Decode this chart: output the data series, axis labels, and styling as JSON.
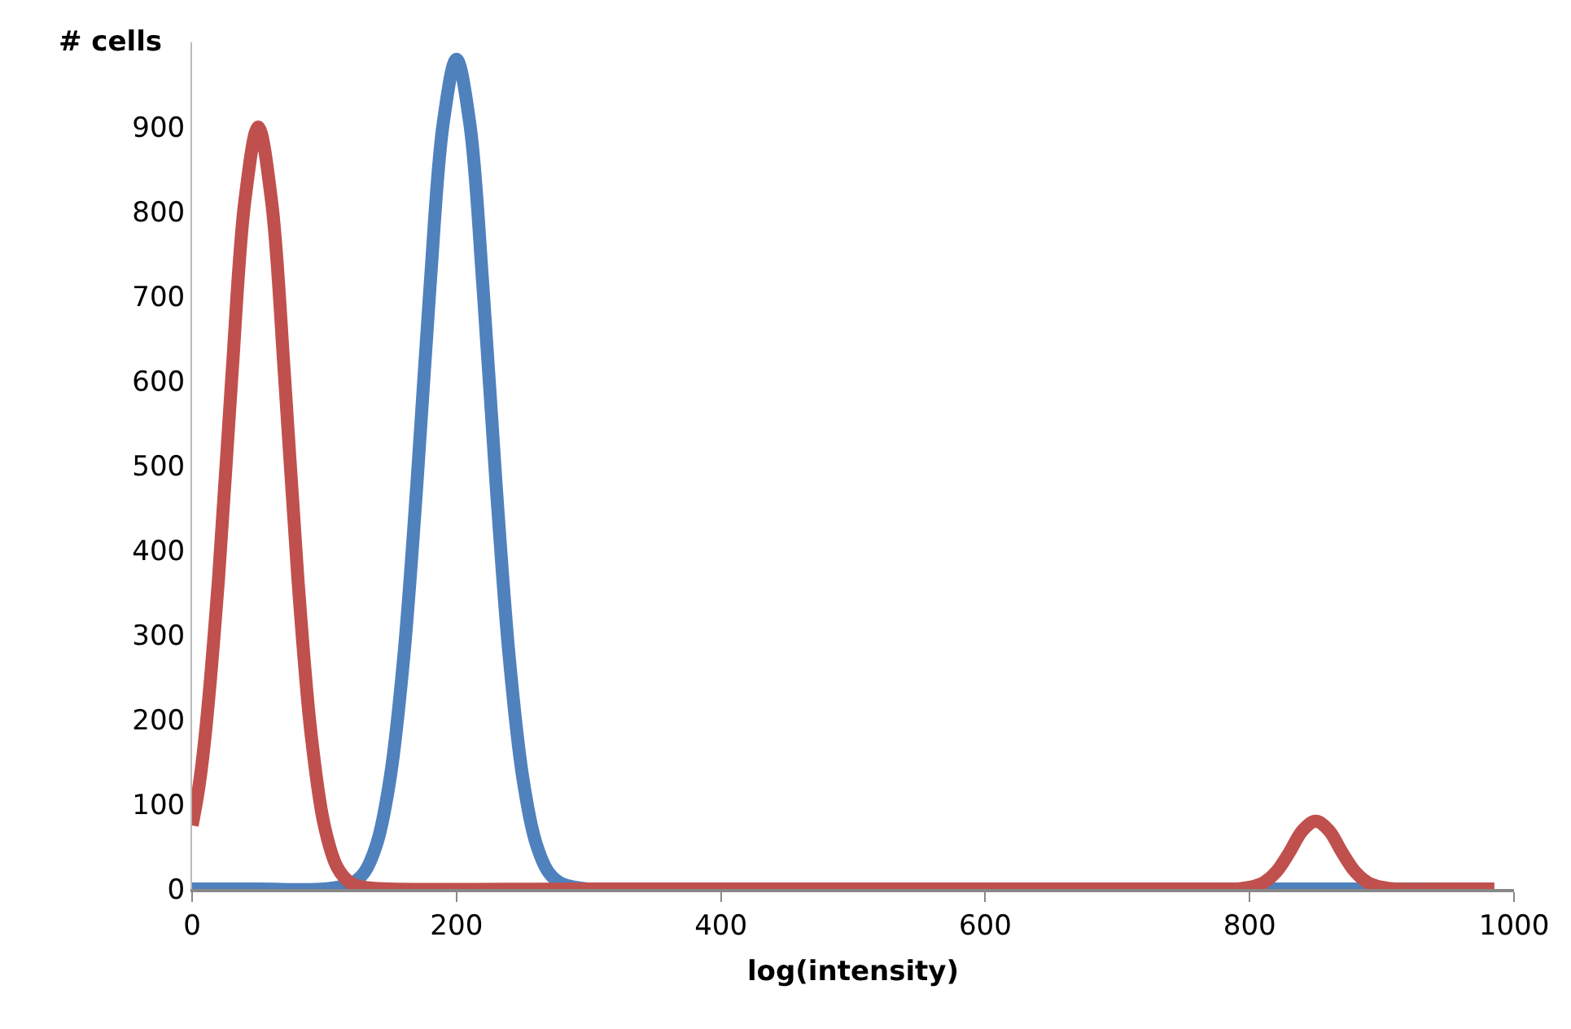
{
  "chart_data": {
    "type": "line",
    "xlabel": "log(intensity)",
    "ylabel": "# cells",
    "xlim": [
      0,
      1000
    ],
    "xticks": [
      0,
      200,
      400,
      600,
      800,
      1000
    ],
    "ylim": [
      0,
      1000
    ],
    "yticks": [
      0,
      100,
      200,
      300,
      400,
      500,
      600,
      700,
      800,
      900
    ],
    "marker": "none",
    "line_style": "solid",
    "series": [
      {
        "color": "#4f81bd",
        "x": [
          0,
          50,
          100,
          120,
          130,
          140,
          150,
          160,
          170,
          180,
          190,
          200,
          210,
          220,
          230,
          240,
          250,
          260,
          270,
          280,
          300,
          400,
          600,
          800,
          985
        ],
        "values": [
          0,
          0,
          0,
          6,
          19,
          55,
          133,
          272,
          477,
          712,
          905,
          980,
          905,
          712,
          477,
          272,
          133,
          55,
          19,
          6,
          0,
          0,
          0,
          0,
          0
        ]
      },
      {
        "color": "#c0504d",
        "x": [
          0,
          5,
          10,
          20,
          30,
          40,
          50,
          60,
          70,
          80,
          90,
          100,
          110,
          120,
          130,
          150,
          300,
          500,
          700,
          780,
          790,
          800,
          810,
          820,
          830,
          840,
          850,
          860,
          870,
          880,
          890,
          900,
          910,
          950,
          985
        ],
        "values": [
          75,
          119,
          183,
          367,
          604,
          814,
          900,
          814,
          604,
          367,
          183,
          75,
          25,
          7,
          2,
          0,
          0,
          0,
          0,
          0,
          0,
          2,
          7,
          20,
          43,
          69,
          80,
          69,
          43,
          20,
          7,
          2,
          0,
          0,
          0
        ]
      }
    ]
  }
}
